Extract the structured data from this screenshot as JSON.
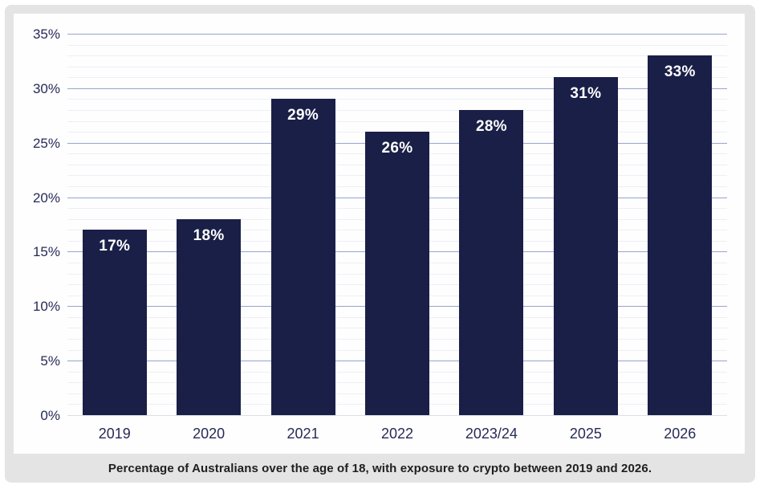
{
  "chart_data": {
    "type": "bar",
    "categories": [
      "2019",
      "2020",
      "2021",
      "2022",
      "2023/24",
      "2025",
      "2026"
    ],
    "values": [
      17,
      18,
      29,
      26,
      28,
      31,
      33
    ],
    "bar_labels": [
      "17%",
      "18%",
      "29%",
      "26%",
      "28%",
      "31%",
      "33%"
    ],
    "title": "",
    "xlabel": "",
    "ylabel": "",
    "ylim": [
      0,
      35
    ],
    "y_major_step": 5,
    "y_minor_step": 1,
    "y_tick_labels": [
      "0%",
      "5%",
      "10%",
      "15%",
      "20%",
      "25%",
      "30%",
      "35%"
    ],
    "grid": "on",
    "legend": "none",
    "colors": {
      "bar": "#1a1f47",
      "bar_value_text": "#ffffff",
      "grid_major": "#97a5cd",
      "grid_minor": "#edeff7",
      "grid_zero": "#dcdfe9",
      "axis_text": "#262b56",
      "panel_background": "#fefefe",
      "card_background": "#e4e4e5",
      "caption_text": "#1f1f1f"
    }
  },
  "caption": {
    "text": "Percentage of Australians over the age of 18, with exposure to crypto between 2019 and 2026."
  }
}
